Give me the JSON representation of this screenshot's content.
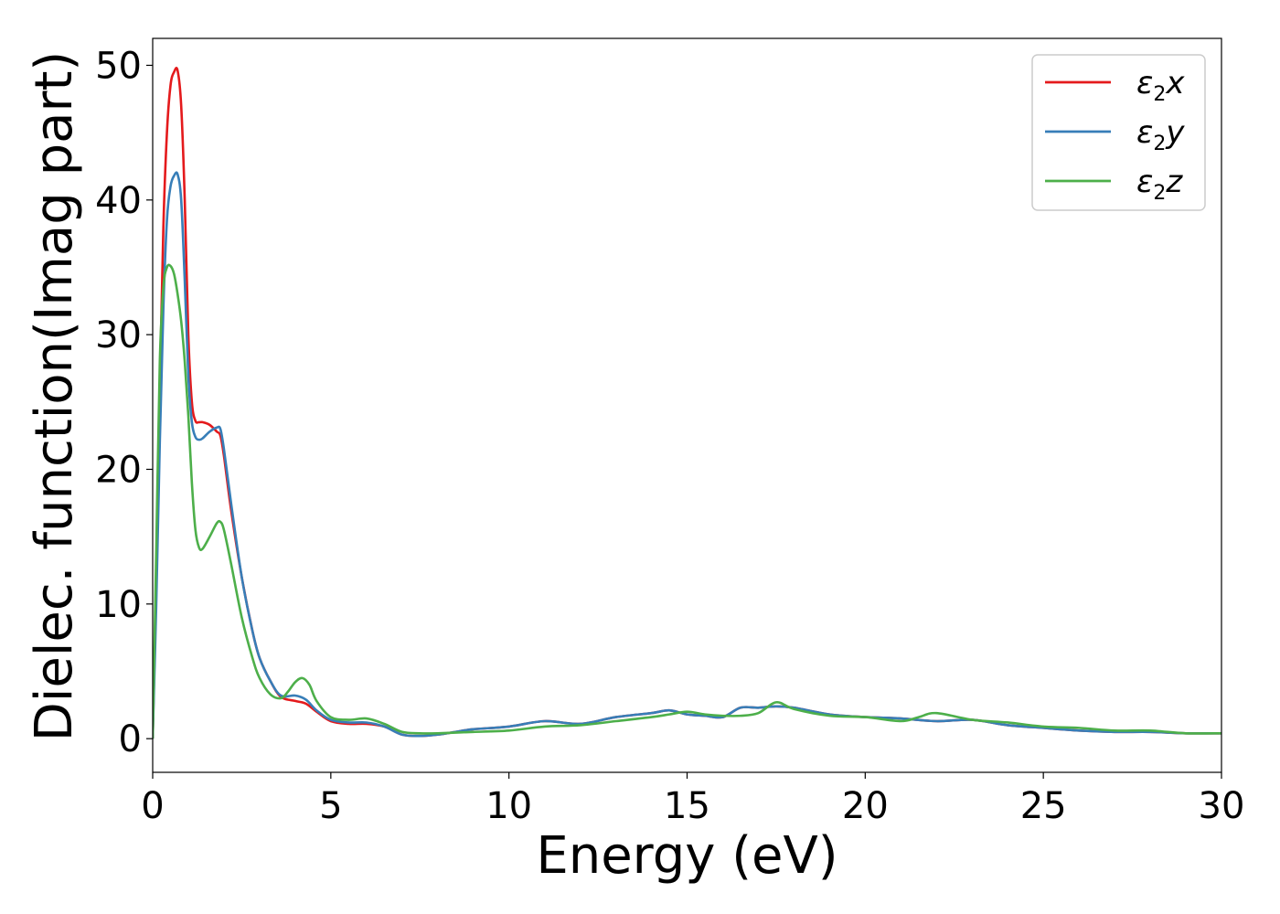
{
  "chart_data": {
    "type": "line",
    "xlabel": "Energy (eV)",
    "ylabel": "Dielec. function(Imag part)",
    "xlim": [
      0,
      30
    ],
    "ylim": [
      -2.5,
      52
    ],
    "xticks": [
      0,
      5,
      10,
      15,
      20,
      25,
      30
    ],
    "xtick_labels": [
      "0",
      "5",
      "10",
      "15",
      "20",
      "25",
      "30"
    ],
    "yticks": [
      0,
      10,
      20,
      30,
      40,
      50
    ],
    "ytick_labels": [
      "0",
      "10",
      "20",
      "30",
      "40",
      "50"
    ],
    "grid": false,
    "legend_position": "top-right",
    "series": [
      {
        "name": "ε2x",
        "legend_symbol": "ε",
        "legend_sub": "2",
        "legend_axis": "x",
        "color": "#e41a1c",
        "x": [
          0,
          0.1,
          0.2,
          0.3,
          0.4,
          0.5,
          0.6,
          0.7,
          0.8,
          0.9,
          1.0,
          1.1,
          1.2,
          1.3,
          1.4,
          1.6,
          1.8,
          1.9,
          2.0,
          2.2,
          2.5,
          2.8,
          3.0,
          3.3,
          3.6,
          4.0,
          4.3,
          4.6,
          5.0,
          5.5,
          6.0,
          6.5,
          7.0,
          7.5,
          8.0,
          8.5,
          9.0,
          10.0,
          11.0,
          12.0,
          13.0,
          14.0,
          14.5,
          15.0,
          15.5,
          16.0,
          16.5,
          17.0,
          17.5,
          18.0,
          19.0,
          20.0,
          21.0,
          22.0,
          23.0,
          24.0,
          25.0,
          26.0,
          27.0,
          28.0,
          29.0,
          30.0
        ],
        "values": [
          0,
          12,
          26,
          38,
          45,
          48.5,
          49.5,
          49.6,
          47,
          40,
          30,
          25,
          23.6,
          23.5,
          23.5,
          23.3,
          22.8,
          22.5,
          21,
          17,
          12,
          8,
          6,
          4.3,
          3.1,
          2.8,
          2.6,
          2.0,
          1.3,
          1.1,
          1.1,
          0.9,
          0.3,
          0.2,
          0.3,
          0.5,
          0.7,
          0.9,
          1.3,
          1.1,
          1.6,
          1.9,
          2.1,
          1.8,
          1.7,
          1.6,
          2.3,
          2.3,
          2.4,
          2.3,
          1.8,
          1.6,
          1.5,
          1.3,
          1.4,
          1.0,
          0.8,
          0.6,
          0.5,
          0.5,
          0.4,
          0.4
        ]
      },
      {
        "name": "ε2y",
        "legend_symbol": "ε",
        "legend_sub": "2",
        "legend_axis": "y",
        "color": "#377eb8",
        "x": [
          0,
          0.1,
          0.2,
          0.3,
          0.4,
          0.5,
          0.6,
          0.7,
          0.8,
          0.9,
          1.0,
          1.1,
          1.2,
          1.3,
          1.4,
          1.6,
          1.8,
          1.9,
          2.0,
          2.2,
          2.5,
          2.8,
          3.0,
          3.3,
          3.6,
          4.0,
          4.3,
          4.6,
          5.0,
          5.5,
          6.0,
          6.5,
          7.0,
          7.5,
          8.0,
          8.5,
          9.0,
          10.0,
          11.0,
          12.0,
          13.0,
          14.0,
          14.5,
          15.0,
          15.5,
          16.0,
          16.5,
          17.0,
          17.5,
          18.0,
          19.0,
          20.0,
          21.0,
          22.0,
          23.0,
          24.0,
          25.0,
          26.0,
          27.0,
          28.0,
          29.0,
          30.0
        ],
        "values": [
          0,
          10,
          22,
          32,
          38.5,
          41,
          41.8,
          41.9,
          40,
          34,
          27,
          23.5,
          22.4,
          22.2,
          22.3,
          22.8,
          23.1,
          23.0,
          21.5,
          17.5,
          12,
          8,
          6,
          4.3,
          3.2,
          3.2,
          2.9,
          2.1,
          1.4,
          1.2,
          1.2,
          0.9,
          0.3,
          0.2,
          0.3,
          0.5,
          0.7,
          0.9,
          1.3,
          1.1,
          1.6,
          1.9,
          2.1,
          1.8,
          1.7,
          1.6,
          2.3,
          2.3,
          2.4,
          2.3,
          1.8,
          1.6,
          1.5,
          1.3,
          1.4,
          1.0,
          0.8,
          0.6,
          0.5,
          0.5,
          0.4,
          0.4
        ]
      },
      {
        "name": "ε2z",
        "legend_symbol": "ε",
        "legend_sub": "2",
        "legend_axis": "z",
        "color": "#4daf4a",
        "x": [
          0,
          0.1,
          0.2,
          0.3,
          0.4,
          0.5,
          0.6,
          0.7,
          0.8,
          0.9,
          1.0,
          1.1,
          1.2,
          1.3,
          1.4,
          1.6,
          1.8,
          1.9,
          2.0,
          2.2,
          2.5,
          2.8,
          3.0,
          3.3,
          3.6,
          3.8,
          4.0,
          4.2,
          4.4,
          4.6,
          5.0,
          5.5,
          6.0,
          6.5,
          7.0,
          7.5,
          8.0,
          8.5,
          9.0,
          10.0,
          11.0,
          12.0,
          13.0,
          14.0,
          14.5,
          15.0,
          15.5,
          16.0,
          16.5,
          17.0,
          17.5,
          18.0,
          19.0,
          20.0,
          21.0,
          21.5,
          22.0,
          23.0,
          24.0,
          25.0,
          26.0,
          27.0,
          28.0,
          29.0,
          30.0
        ],
        "values": [
          0,
          14,
          28,
          33.5,
          35,
          35.1,
          34.5,
          33,
          31,
          28,
          24,
          19,
          15.5,
          14.2,
          14.1,
          15.0,
          16.0,
          16.1,
          15.5,
          13,
          9,
          6,
          4.5,
          3.3,
          3.0,
          3.5,
          4.2,
          4.5,
          4.0,
          2.8,
          1.6,
          1.4,
          1.5,
          1.1,
          0.5,
          0.4,
          0.4,
          0.45,
          0.5,
          0.6,
          0.9,
          1.0,
          1.3,
          1.6,
          1.8,
          2.0,
          1.8,
          1.7,
          1.7,
          1.9,
          2.7,
          2.2,
          1.7,
          1.6,
          1.3,
          1.6,
          1.9,
          1.4,
          1.2,
          0.9,
          0.8,
          0.6,
          0.6,
          0.4,
          0.4
        ]
      }
    ]
  }
}
